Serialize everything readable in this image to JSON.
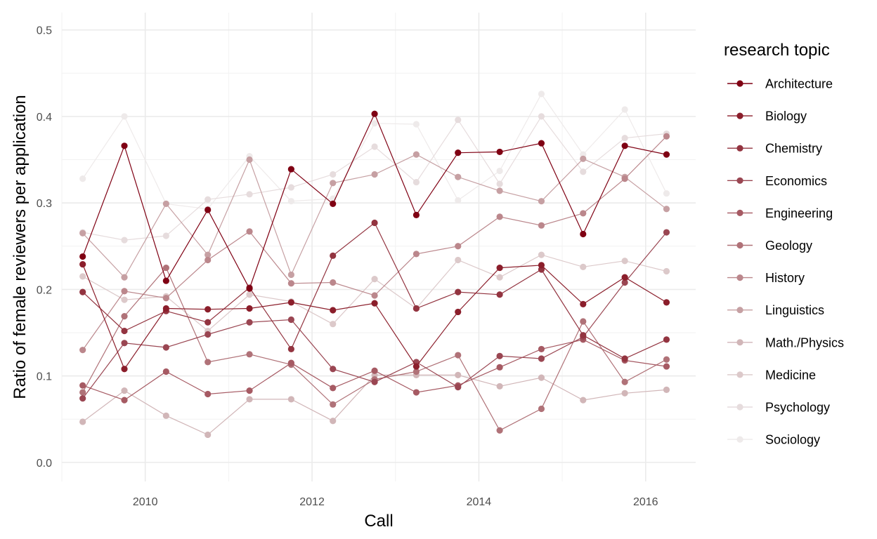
{
  "chart_data": {
    "type": "line",
    "xlabel": "Call",
    "ylabel": "Ratio of female reviewers per application",
    "xlim": [
      2009.0,
      2016.6
    ],
    "ylim": [
      -0.022,
      0.52
    ],
    "x_ticks": [
      2010,
      2012,
      2014,
      2016
    ],
    "x_tick_labels": [
      "2010",
      "2012",
      "2014",
      "2016"
    ],
    "y_ticks": [
      0.0,
      0.1,
      0.2,
      0.3,
      0.4,
      0.5
    ],
    "y_tick_labels": [
      "0.0",
      "0.1",
      "0.2",
      "0.3",
      "0.4",
      "0.5"
    ],
    "grid": true,
    "legend": {
      "title": "research topic",
      "position": "right"
    },
    "x": [
      2009.25,
      2009.75,
      2010.25,
      2010.75,
      2011.25,
      2011.75,
      2012.25,
      2012.75,
      2013.25,
      2013.75,
      2014.25,
      2014.75,
      2015.25,
      2015.75,
      2016.25
    ],
    "series": [
      {
        "name": "Architecture",
        "color": "#7f0013",
        "values": [
          0.238,
          0.366,
          0.21,
          0.292,
          0.201,
          0.339,
          0.299,
          0.403,
          0.286,
          0.358,
          0.359,
          0.369,
          0.264,
          0.366,
          0.356
        ]
      },
      {
        "name": "Biology",
        "color": "#8b1e2b",
        "values": [
          0.229,
          0.108,
          0.178,
          0.177,
          0.178,
          0.185,
          0.176,
          0.184,
          0.111,
          0.174,
          0.225,
          0.228,
          0.183,
          0.214,
          0.185
        ]
      },
      {
        "name": "Chemistry",
        "color": "#933440",
        "values": [
          0.197,
          0.152,
          0.175,
          0.162,
          0.202,
          0.131,
          0.239,
          0.277,
          0.178,
          0.197,
          0.194,
          0.223,
          0.147,
          0.12,
          0.142
        ]
      },
      {
        "name": "Economics",
        "color": "#9a4652",
        "values": [
          0.074,
          0.138,
          0.133,
          0.148,
          0.162,
          0.165,
          0.108,
          0.093,
          0.116,
          0.087,
          0.123,
          0.12,
          0.145,
          0.208,
          0.266
        ]
      },
      {
        "name": "Engineering",
        "color": "#a65a63",
        "values": [
          0.089,
          0.072,
          0.105,
          0.079,
          0.083,
          0.115,
          0.086,
          0.106,
          0.081,
          0.089,
          0.11,
          0.131,
          0.142,
          0.118,
          0.111
        ]
      },
      {
        "name": "Geology",
        "color": "#b07278",
        "values": [
          0.081,
          0.169,
          0.225,
          0.116,
          0.125,
          0.113,
          0.067,
          0.096,
          0.105,
          0.124,
          0.037,
          0.062,
          0.163,
          0.093,
          0.119
        ]
      },
      {
        "name": "History",
        "color": "#bb878c",
        "values": [
          0.13,
          0.198,
          0.19,
          0.234,
          0.267,
          0.207,
          0.208,
          0.193,
          0.241,
          0.25,
          0.284,
          0.274,
          0.288,
          0.328,
          0.377
        ]
      },
      {
        "name": "Linguistics",
        "color": "#c6a0a3",
        "values": [
          0.265,
          0.214,
          0.299,
          0.24,
          0.35,
          0.217,
          0.323,
          0.333,
          0.356,
          0.33,
          0.314,
          0.302,
          0.351,
          0.33,
          0.293
        ]
      },
      {
        "name": "Math./Physics",
        "color": "#d1b6b8",
        "values": [
          0.047,
          0.083,
          0.054,
          0.032,
          0.073,
          0.073,
          0.048,
          0.101,
          0.101,
          0.101,
          0.088,
          0.098,
          0.072,
          0.08,
          0.084
        ]
      },
      {
        "name": "Medicine",
        "color": "#dcc9ca",
        "values": [
          0.215,
          0.188,
          0.192,
          0.152,
          0.194,
          0.186,
          0.16,
          0.212,
          0.178,
          0.234,
          0.214,
          0.24,
          0.226,
          0.233,
          0.221
        ]
      },
      {
        "name": "Psychology",
        "color": "#e6dcdd",
        "values": [
          0.266,
          0.257,
          0.262,
          0.304,
          0.31,
          0.318,
          0.333,
          0.365,
          0.324,
          0.396,
          0.322,
          0.4,
          0.336,
          0.375,
          0.38
        ]
      },
      {
        "name": "Sociology",
        "color": "#eeeaea",
        "values": [
          0.328,
          0.4,
          0.299,
          0.293,
          0.354,
          0.302,
          0.305,
          0.392,
          0.391,
          0.303,
          0.337,
          0.426,
          0.356,
          0.408,
          0.311
        ]
      }
    ]
  }
}
